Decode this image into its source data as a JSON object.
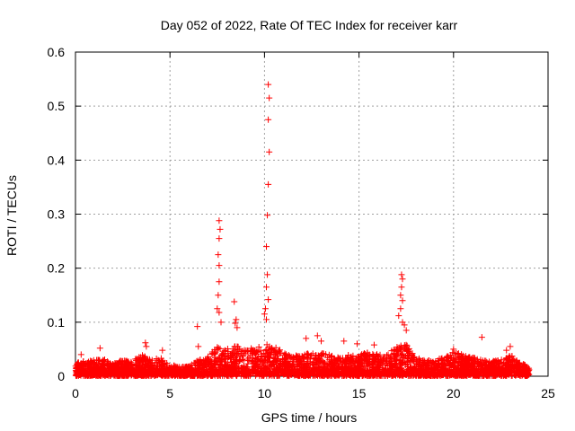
{
  "chart_data": {
    "type": "scatter",
    "title": "Day 052 of 2022, Rate Of TEC Index for receiver karr",
    "xlabel": "GPS time / hours",
    "ylabel": "ROTI / TECUs",
    "xlim": [
      0,
      25
    ],
    "ylim": [
      0,
      0.6
    ],
    "x_ticks": [
      "0",
      "5",
      "10",
      "15",
      "20",
      "25"
    ],
    "y_ticks": [
      "0",
      "0.1",
      "0.2",
      "0.3",
      "0.4",
      "0.5",
      "0.6"
    ],
    "grid": true,
    "marker": "+",
    "color": "#ff0000",
    "series": [
      {
        "name": "ROTI",
        "baseline_envelope": [
          [
            0.0,
            0.025
          ],
          [
            0.5,
            0.028
          ],
          [
            1.0,
            0.03
          ],
          [
            1.5,
            0.032
          ],
          [
            2.0,
            0.025
          ],
          [
            2.5,
            0.03
          ],
          [
            3.0,
            0.028
          ],
          [
            3.5,
            0.04
          ],
          [
            4.0,
            0.03
          ],
          [
            4.5,
            0.035
          ],
          [
            5.0,
            0.022
          ],
          [
            5.5,
            0.018
          ],
          [
            6.0,
            0.018
          ],
          [
            6.5,
            0.03
          ],
          [
            7.0,
            0.04
          ],
          [
            7.5,
            0.055
          ],
          [
            8.0,
            0.05
          ],
          [
            8.5,
            0.06
          ],
          [
            9.0,
            0.05
          ],
          [
            9.5,
            0.055
          ],
          [
            10.0,
            0.06
          ],
          [
            10.5,
            0.055
          ],
          [
            11.0,
            0.045
          ],
          [
            11.5,
            0.04
          ],
          [
            12.0,
            0.04
          ],
          [
            12.5,
            0.045
          ],
          [
            13.0,
            0.045
          ],
          [
            13.5,
            0.04
          ],
          [
            14.0,
            0.035
          ],
          [
            14.5,
            0.04
          ],
          [
            15.0,
            0.04
          ],
          [
            15.5,
            0.045
          ],
          [
            16.0,
            0.04
          ],
          [
            16.5,
            0.045
          ],
          [
            17.0,
            0.055
          ],
          [
            17.5,
            0.06
          ],
          [
            18.0,
            0.035
          ],
          [
            18.5,
            0.03
          ],
          [
            19.0,
            0.03
          ],
          [
            19.5,
            0.035
          ],
          [
            20.0,
            0.045
          ],
          [
            20.5,
            0.04
          ],
          [
            21.0,
            0.035
          ],
          [
            21.5,
            0.03
          ],
          [
            22.0,
            0.028
          ],
          [
            22.5,
            0.03
          ],
          [
            23.0,
            0.04
          ],
          [
            23.5,
            0.025
          ],
          [
            24.0,
            0.018
          ]
        ],
        "outliers": [
          [
            10.2,
            0.54
          ],
          [
            10.25,
            0.515
          ],
          [
            10.2,
            0.475
          ],
          [
            10.25,
            0.415
          ],
          [
            10.2,
            0.355
          ],
          [
            10.15,
            0.298
          ],
          [
            10.1,
            0.24
          ],
          [
            10.15,
            0.188
          ],
          [
            10.1,
            0.165
          ],
          [
            10.2,
            0.142
          ],
          [
            10.05,
            0.125
          ],
          [
            10.0,
            0.115
          ],
          [
            10.1,
            0.105
          ],
          [
            7.6,
            0.288
          ],
          [
            7.65,
            0.272
          ],
          [
            7.6,
            0.255
          ],
          [
            7.55,
            0.225
          ],
          [
            7.6,
            0.205
          ],
          [
            7.6,
            0.175
          ],
          [
            7.55,
            0.15
          ],
          [
            7.5,
            0.125
          ],
          [
            7.6,
            0.118
          ],
          [
            7.7,
            0.1
          ],
          [
            8.4,
            0.138
          ],
          [
            8.5,
            0.105
          ],
          [
            8.45,
            0.098
          ],
          [
            8.55,
            0.09
          ],
          [
            6.45,
            0.092
          ],
          [
            6.5,
            0.055
          ],
          [
            17.25,
            0.188
          ],
          [
            17.3,
            0.18
          ],
          [
            17.25,
            0.165
          ],
          [
            17.2,
            0.15
          ],
          [
            17.3,
            0.14
          ],
          [
            17.2,
            0.125
          ],
          [
            17.1,
            0.112
          ],
          [
            17.3,
            0.1
          ],
          [
            17.4,
            0.095
          ],
          [
            17.5,
            0.085
          ],
          [
            3.7,
            0.062
          ],
          [
            3.75,
            0.055
          ],
          [
            4.6,
            0.048
          ],
          [
            1.3,
            0.052
          ],
          [
            0.3,
            0.04
          ],
          [
            12.8,
            0.075
          ],
          [
            13.0,
            0.065
          ],
          [
            12.2,
            0.07
          ],
          [
            14.2,
            0.065
          ],
          [
            15.8,
            0.058
          ],
          [
            14.9,
            0.06
          ],
          [
            21.5,
            0.072
          ],
          [
            20.0,
            0.05
          ],
          [
            23.0,
            0.055
          ],
          [
            22.8,
            0.048
          ]
        ]
      }
    ]
  }
}
